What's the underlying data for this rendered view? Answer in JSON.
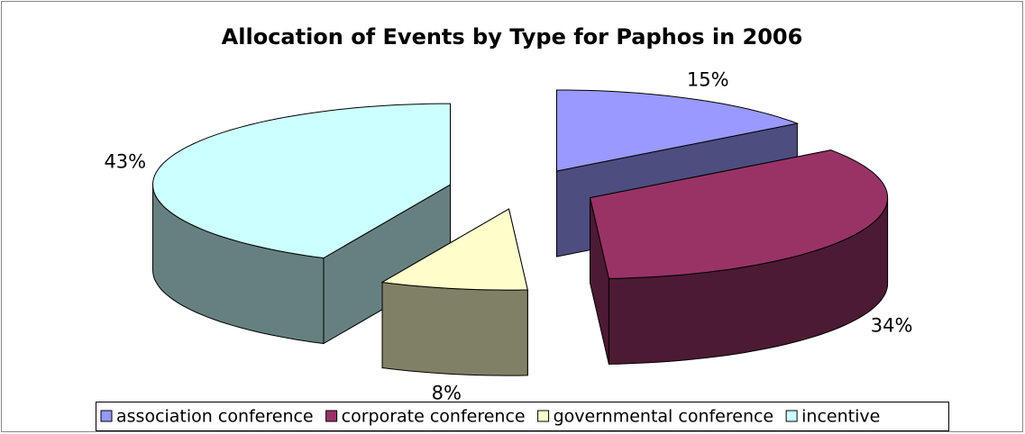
{
  "chart_data": {
    "type": "pie3d",
    "title": "Allocation of Events by Type for Paphos in 2006",
    "categories": [
      "association conference",
      "corporate conference",
      "governmental conference",
      "incentive"
    ],
    "values": [
      15,
      34,
      8,
      43
    ],
    "value_labels": [
      "15%",
      "34%",
      "8%",
      "43%"
    ],
    "colors": [
      "#9999ff",
      "#993366",
      "#ffffcc",
      "#ccffff"
    ],
    "legend": "bottom"
  }
}
